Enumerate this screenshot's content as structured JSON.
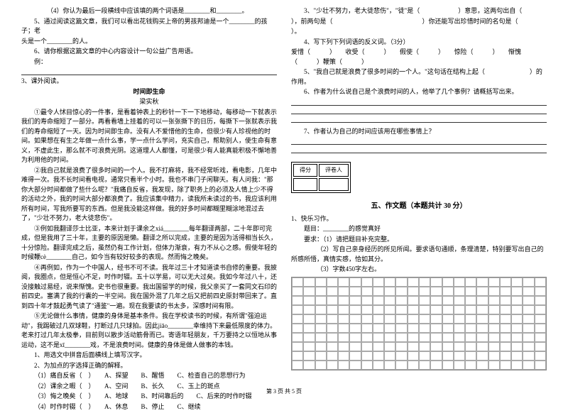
{
  "left": {
    "q4": "（4）你认为最后一段横线中应该填的两个词语是________和________。",
    "q5a": "5、通过阅读这篇文章，我们可以看出花钱购买上帝的男孩邦迪是一个________的孩子；老",
    "q5b": "头是一个________的人。",
    "q6": "6、请你根据这篇文章的中心内容设计一句公益广告用语。",
    "q6ex": "例：",
    "s3": "3、课外阅读。",
    "title": "时间即生命",
    "author": "梁实秋",
    "p1": "①最令人怵目惊心的一件事，是看着钟表上的秒针一下一下地移动，每移动一下就表示我们的寿命缩短了一部分。再看看墙上挂着的可以一张张撕下的日历，每撕下一张就表示我们的寿命缩短了一天。因为时间即生命。没有人不爱惜他的生命，但很少有人珍视他的时间。如果想在有生之年做一点什么事，学一点什么学问，充实自己，帮助别人，使生命有意义，不虚此生，那么就不可浪费光阴。这道理人人都懂，可是很少有人能真能积极不懈地善为利用他的时间。",
    "p2": "②我自己就是浪费了很多时间的一个人。我不打麻将，我不经常听戏，看电影，几年中难得一次。我不长时间看电视，通常只看半个小时。我也不串门子闲聊天。有人问我：\"那你大部分时间都做了些什么呢？\"我痛自反省，我发现，除了职务上的必须及人情上少不得的活动之外，我的时间大部分都浪费了。我应该集中精力，读我所未读过的书，我应该利用所有时间，写我所要写的东西。但是我没能这样做。我的好多时间都糊里糊涂地混过去了，\"少壮不努力，老大徒悲伤\"。",
    "p3": "③例如我翻译莎士比亚，本来计划于课余之xiá________每年翻译两部，二十年即可完成，但是我用了三十年，主要的原因是懒。翻译之所以完成，主要的是因为活得相当长久，十分惊险。翻译完成之后，虽然仍有工作计划，但体力渐衰，有力不从心之感。假使年轻的时候鞭cè________自己，如今当有较好较多的表现。然而悔之晚矣。",
    "p4": "④再例如，作为一个中国人，经书不可不读。我年过三十才知道读书自修的重要。我披阅，我圈点，但是恒心不足，时作时辍。五十以学易，可以无大过矣。我如今年过八十，还没接触过易经，说来惭愧。史书也很重要。我出国留学的时候，我父亲买了一套同文石印的前四史。塞满了我的行囊的一半空间。我在国外混了几年之后又把前四史原封带回来了。直到四十年才鼓起勇气读了\"通鉴\"一遍。现在我要读的书太多，深感时间有限。",
    "p5": "⑤无论做什么事情，健康的身体是基本条件。我在学校读书的时候，有所谓\"强迫运动\"，我踢破过几双球鞋，打断过几只球拍。因此jiāo________幸维持下来最低限度的体力。老来打过几年太极拳，目前则以散步活动筋骨而已。寄语年轻朋友，千万要持之以恒地从事运动，这不是xī________戏，不是浪费时间。健康的身体是做人做事的本钱。",
    "q1": "1、用选文中拼音后面横线上填写汉字。",
    "q2": "2、为加点的字选择正确的解释。",
    "opt1a": "（1）痛自反省（　）",
    "opt1b": "A、探望",
    "opt1c": "B、醒悟",
    "opt1d": "C、检查自己的思想行为",
    "opt2a": "（2）课余之暇（　）",
    "opt2b": "A、空间",
    "opt2c": "B、长久",
    "opt2d": "C、玉上的斑点",
    "opt3a": "（3）悔之晚矣（　）",
    "opt3b": "A、地球",
    "opt3c": "B、时间靠后的",
    "opt3d": "C、后来的时作时辍",
    "opt4a": "（4）时作时辍（　）",
    "opt4b": "A、休息",
    "opt4c": "B、停止",
    "opt4d": "C、继续"
  },
  "right": {
    "q3a": "3、\"少壮不努力，老大徒悲伤\"，\"徒\"是（　　　　　　）意思，这两句出自（",
    "q3b": "），前两句是（　　　　　　　　　　　　　　）你还能写出珍惜时间的名句是（",
    "q3c": "）。",
    "q4": "4、写下列下列词语的反义词。（3分）",
    "q4w": "爱惜（　　　）　　收受（　　　）　　假使（　　　）　　惊险（　　　）　　惭愧（　　　）鞭策（　　　）",
    "q5": "5、\"我自己就是浪费了很多时间的一个人。\"这句话在结构上起（　　　　　　　）的作用。",
    "q6": "6、作者为什么说自己是个浪费时间的人，他举了几个事例？请概括写出来。",
    "q7": "7、作者认为自己的时间应该用在哪些事情上？",
    "scoreh1": "得分",
    "scoreh2": "评卷人",
    "section5": "五、作文题（本题共计 30 分）",
    "w1": "1、快乐习作。",
    "wtitle": "题目：________的感觉真好",
    "wreq": "要求：（1）请把题目补充完整。",
    "wreq2": "（2）写自己亲身经历的所见所闻。要求语句通顺，条理清楚，特别要写出自己的所感所悟，真情实感，恰如其分。",
    "wreq3": "（3）字数450字左右。"
  },
  "footer": "第 3 页 共 5 页",
  "colors": {
    "text": "#000000",
    "bg": "#ffffff",
    "border": "#888888"
  }
}
